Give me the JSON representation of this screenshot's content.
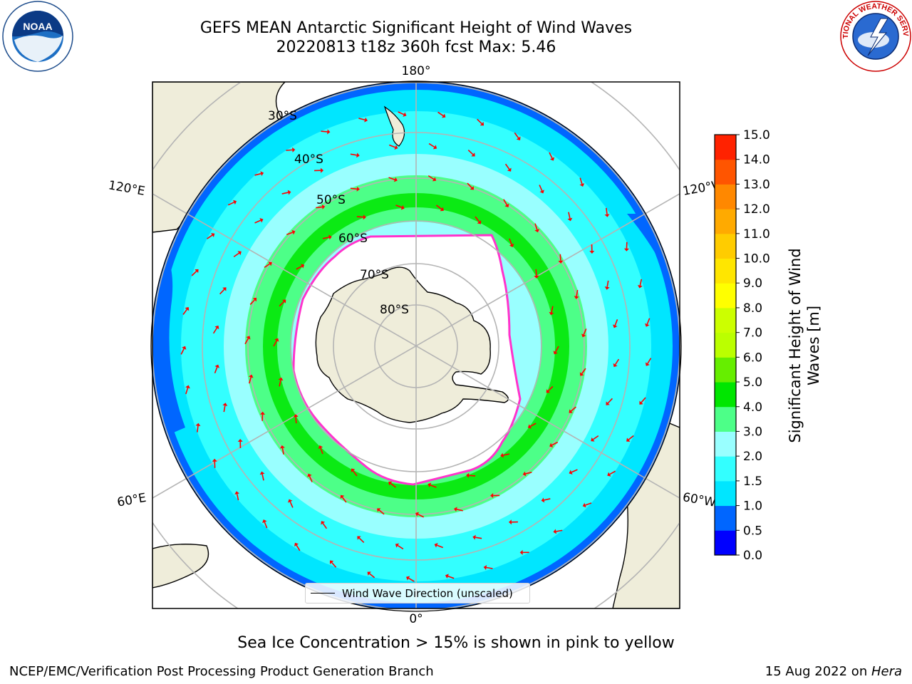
{
  "header": {
    "title_line1": "GEFS MEAN Antarctic Significant Height of Wind Waves",
    "title_line2": "20220813 t18z 360h fcst   Max: 5.46"
  },
  "logos": {
    "noaa": {
      "text": "NOAA",
      "icon": "noaa-seal-icon"
    },
    "nws": {
      "text": "NATIONAL WEATHER SERVICE",
      "icon": "nws-seal-icon"
    }
  },
  "map": {
    "projection": "south-polar-stereographic",
    "longitude_labels": {
      "top": "180°",
      "bottom": "0°",
      "left_upper": "120°E",
      "left_lower": "60°E",
      "right_upper": "120°W",
      "right_lower": "60°W"
    },
    "latitude_labels": [
      "30°S",
      "40°S",
      "50°S",
      "60°S",
      "70°S",
      "80°S"
    ],
    "legend_label": "Wind Wave Direction (unscaled)",
    "colors": {
      "land": "#efedda",
      "ice_edge": "#ff33cc",
      "arrow": "#ff0000",
      "grid": "#b4b4b4"
    }
  },
  "colorbar": {
    "label_line1": "Significant Height of Wind",
    "label_line2": "Waves [m]",
    "ticks": [
      "0.0",
      "0.5",
      "1.0",
      "1.5",
      "2.0",
      "3.0",
      "4.0",
      "5.0",
      "6.0",
      "7.0",
      "8.0",
      "9.0",
      "10.0",
      "11.0",
      "12.0",
      "13.0",
      "14.0",
      "15.0"
    ],
    "colors": [
      "#0000ff",
      "#0066ff",
      "#00e6ff",
      "#33ffff",
      "#99ffff",
      "#4dff88",
      "#00e600",
      "#66ee00",
      "#bbff00",
      "#ccff00",
      "#ffff00",
      "#ffe600",
      "#ffcc00",
      "#ffaa00",
      "#ff8800",
      "#ff5500",
      "#ff2200"
    ]
  },
  "footer": {
    "note": "Sea Ice Concentration > 15% is shown in pink to yellow",
    "credit_left": "NCEP/EMC/Verification Post Processing Product Generation Branch",
    "credit_right_prefix": "15 Aug 2022 on ",
    "credit_right_italic": "Hera"
  }
}
